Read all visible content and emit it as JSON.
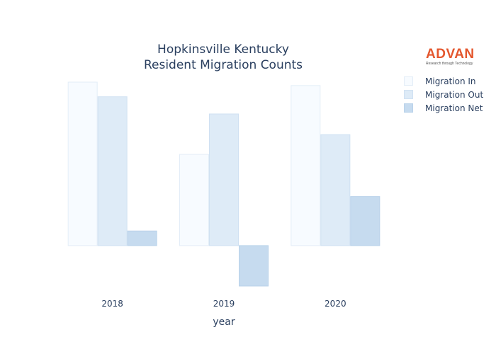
{
  "brand": {
    "logo_text": "ADVAN",
    "logo_tagline": "Research through Technology",
    "logo_color": "#e4572e"
  },
  "chart_data": {
    "type": "bar",
    "title": "Hopkinsville Kentucky Resident Migration Counts",
    "title_lines": [
      "Hopkinsville Kentucky",
      "Resident Migration Counts"
    ],
    "xlabel": "year",
    "ylabel": "",
    "categories": [
      "2018",
      "2019",
      "2020"
    ],
    "series": [
      {
        "name": "Migration In",
        "values": [
          950,
          530,
          930
        ],
        "color": "#f7fbff",
        "stroke": "#e3edf7"
      },
      {
        "name": "Migration Out",
        "values": [
          865,
          765,
          645
        ],
        "color": "#deebf7",
        "stroke": "#d0e1f2"
      },
      {
        "name": "Migration Net",
        "values": [
          85,
          -235,
          285
        ],
        "color": "#c6dbef",
        "stroke": "#b9d2ea"
      }
    ],
    "ylim": [
      -235,
      950
    ],
    "grid": false,
    "y_tick_labels_shown": false,
    "legend_position": "top-right"
  }
}
